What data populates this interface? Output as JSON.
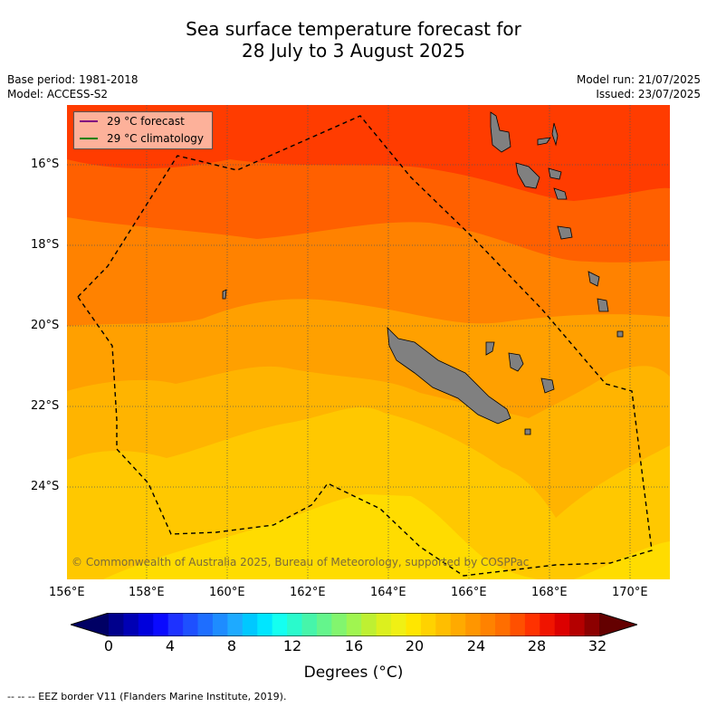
{
  "title_line1": "Sea surface temperature forecast for",
  "title_line2": "28 July to 3 August 2025",
  "base_period": "Base period: 1981-2018",
  "model": "Model: ACCESS-S2",
  "model_run": "Model run: 21/07/2025",
  "issued": "Issued: 23/07/2025",
  "legend": {
    "forecast": "29 °C  forecast",
    "climatology": "29 °C  climatology",
    "forecast_color": "#800080",
    "climatology_color": "#008000"
  },
  "copyright": "© Commonwealth of Australia 2025, Bureau of Meteorology, supported by COSPPac",
  "lon_ticks": [
    "156°E",
    "158°E",
    "160°E",
    "162°E",
    "164°E",
    "166°E",
    "168°E",
    "170°E"
  ],
  "lat_ticks": [
    "16°S",
    "18°S",
    "20°S",
    "22°S",
    "24°S"
  ],
  "colorbar": {
    "labels": [
      "0",
      "4",
      "8",
      "12",
      "16",
      "20",
      "24",
      "28",
      "32"
    ],
    "title": "Degrees (°C)",
    "colors": [
      "#00008c",
      "#0000b4",
      "#0000dc",
      "#0a0aff",
      "#1e32ff",
      "#1e50ff",
      "#1e6eff",
      "#1e8cff",
      "#1eaaff",
      "#00c8ff",
      "#00e6ff",
      "#14fff0",
      "#2afacc",
      "#46f5aa",
      "#64f58c",
      "#82f56e",
      "#a0f550",
      "#bef032",
      "#dcf01e",
      "#f0f014",
      "#ffe600",
      "#ffd200",
      "#ffbe00",
      "#ffaa00",
      "#ff9600",
      "#ff8200",
      "#ff6e00",
      "#ff5000",
      "#ff3200",
      "#f01400",
      "#dc0000",
      "#b40000",
      "#8c0000"
    ],
    "under_color": "#000064",
    "over_color": "#640000"
  },
  "footer": "-- -- -- EEZ border V11 (Flanders Marine Institute, 2019)."
}
